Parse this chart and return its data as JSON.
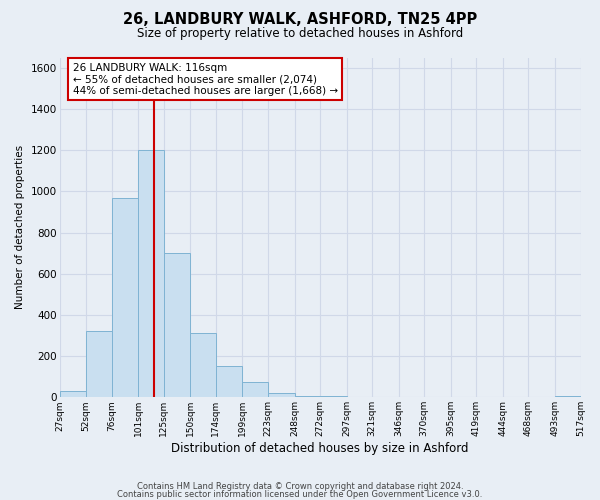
{
  "title1": "26, LANDBURY WALK, ASHFORD, TN25 4PP",
  "title2": "Size of property relative to detached houses in Ashford",
  "xlabel": "Distribution of detached houses by size in Ashford",
  "ylabel": "Number of detached properties",
  "bin_edges": [
    27,
    52,
    76,
    101,
    125,
    150,
    174,
    199,
    223,
    248,
    272,
    297,
    321,
    346,
    370,
    395,
    419,
    444,
    468,
    493,
    517
  ],
  "bar_heights": [
    30,
    320,
    970,
    1200,
    700,
    310,
    150,
    75,
    20,
    5,
    5,
    2,
    0,
    0,
    0,
    0,
    0,
    0,
    0,
    8
  ],
  "bar_color": "#c9dff0",
  "bar_edge_color": "#7fb3d3",
  "vline_x": 116,
  "vline_color": "#cc0000",
  "annotation_line1": "26 LANDBURY WALK: 116sqm",
  "annotation_line2": "← 55% of detached houses are smaller (2,074)",
  "annotation_line3": "44% of semi-detached houses are larger (1,668) →",
  "ylim": [
    0,
    1650
  ],
  "yticks": [
    0,
    200,
    400,
    600,
    800,
    1000,
    1200,
    1400,
    1600
  ],
  "tick_labels": [
    "27sqm",
    "52sqm",
    "76sqm",
    "101sqm",
    "125sqm",
    "150sqm",
    "174sqm",
    "199sqm",
    "223sqm",
    "248sqm",
    "272sqm",
    "297sqm",
    "321sqm",
    "346sqm",
    "370sqm",
    "395sqm",
    "419sqm",
    "444sqm",
    "468sqm",
    "493sqm",
    "517sqm"
  ],
  "footer_line1": "Contains HM Land Registry data © Crown copyright and database right 2024.",
  "footer_line2": "Contains public sector information licensed under the Open Government Licence v3.0.",
  "background_color": "#e8eef5",
  "grid_color": "#d0d8e8"
}
